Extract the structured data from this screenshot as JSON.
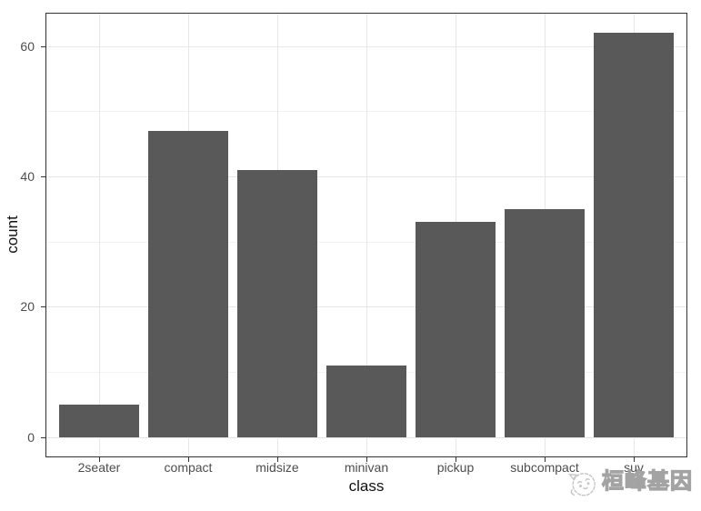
{
  "chart_data": {
    "type": "bar",
    "title": "",
    "xlabel": "class",
    "ylabel": "count",
    "categories": [
      "2seater",
      "compact",
      "midsize",
      "minivan",
      "pickup",
      "subcompact",
      "suv"
    ],
    "values": [
      5,
      47,
      41,
      11,
      33,
      35,
      62
    ],
    "ylim": [
      -3.1,
      65.1
    ],
    "yticks_major": [
      0,
      20,
      40,
      60
    ],
    "yticks_minor": [
      10,
      30,
      50
    ],
    "legend": "none",
    "grid": "horizontal major+minor, vertical major at category centers",
    "bar_color": "#595959",
    "theme": {
      "background": "#ffffff",
      "panel_border": "#333333",
      "grid_major": "#e7e7e7",
      "grid_minor": "#f2f2f2",
      "tick_color": "#333333",
      "tick_label_color": "#4d4d4d",
      "axis_title_color": "#111111"
    }
  },
  "watermark": {
    "text": "桓峰基因",
    "logo_icon": "mascot-face-icon",
    "color": "#a3a3a3"
  }
}
